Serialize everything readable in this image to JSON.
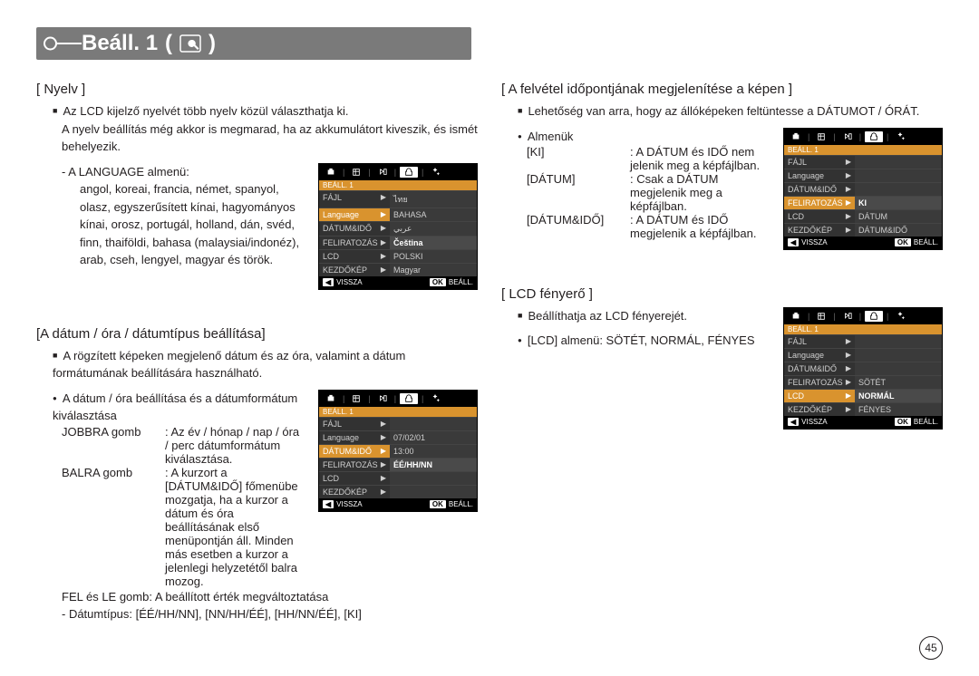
{
  "header": {
    "title": "Beáll. 1"
  },
  "page_number": "45",
  "colors": {
    "header_bar": "#7a7a7a",
    "accent": "#d9932e",
    "mini_bg": "#2b2b2b"
  },
  "left": {
    "nyelv": {
      "title": "[ Nyelv ]",
      "para1": "Az LCD kijelző nyelvét több nyelv közül választhatja ki.",
      "para2": "A nyelv beállítás még akkor is megmarad, ha az akkumulátort kiveszik, és ismét behelyezik.",
      "sub_title": "- A LANGUAGE almenü:",
      "langs": "angol, koreai, francia, német, spanyol, olasz, egyszerűsített kínai, hagyományos kínai, orosz, portugál, holland, dán, svéd, finn, thaiföldi, bahasa (malaysiai/indonéz), arab, cseh, lengyel, magyar és török."
    },
    "datum": {
      "title": "[A dátum / óra / dátumtípus beállítása]",
      "para1": "A rögzített képeken megjelenő dátum és az óra, valamint a dátum formátumának beállítására használható.",
      "sub_title": "A dátum / óra beállítása és a dátumformátum kiválasztása",
      "jobb_key": "JOBBRA gomb",
      "jobb_val": ": Az év / hónap / nap / óra / perc dátumformátum kiválasztása.",
      "bal_key": "BALRA gomb",
      "bal_val": ": A kurzort a [DÁTUM&IDŐ] főmenübe mozgatja, ha a kurzor a dátum és óra beállításának első menüpontján áll. Minden más esetben a kurzor a jelenlegi helyzetétől balra mozog.",
      "felle": "FEL és LE gomb: A beállított érték megváltoztatása",
      "dtype": "- Dátumtípus: [ÉÉ/HH/NN], [NN/HH/ÉÉ], [HH/NN/ÉÉ], [KI]"
    }
  },
  "right": {
    "felvetel": {
      "title": "[ A felvétel időpontjának megjelenítése a képen ]",
      "para1": "Lehetőség van arra, hogy az állóképeken feltüntesse a DÁTUMOT / ÓRÁT.",
      "almenuk": "Almenük",
      "ki_key": "[KI]",
      "ki_val": ": A DÁTUM és IDŐ nem jelenik meg a képfájlban.",
      "datum_key": "[DÁTUM]",
      "datum_val": ": Csak a DÁTUM megjelenik meg a képfájlban.",
      "both_key": "[DÁTUM&IDŐ]",
      "both_val": ": A DÁTUM és IDŐ megjelenik a képfájlban."
    },
    "lcd": {
      "title": "[ LCD fényerő ]",
      "para1": "Beállíthatja az LCD fényerejét.",
      "sub": "[LCD] almenü: SÖTÉT, NORMÁL, FÉNYES"
    }
  },
  "lcds": {
    "common": {
      "banner": "BEÁLL. 1",
      "foot_back_sym": "◀",
      "foot_back": "VISSZA",
      "foot_ok_sym": "OK",
      "foot_ok": "BEÁLL.",
      "arrow": "▶"
    },
    "lang": {
      "rows": [
        {
          "l": "FÁJL",
          "r": "ไทย"
        },
        {
          "l": "Language",
          "r": "BAHASA",
          "lsel": true
        },
        {
          "l": "DÁTUM&IDŐ",
          "r": "عربي"
        },
        {
          "l": "FELIRATOZÁS",
          "r": "Čeština",
          "rsel": true
        },
        {
          "l": "LCD",
          "r": "POLSKI"
        },
        {
          "l": "KEZDŐKÉP",
          "r": "Magyar"
        }
      ]
    },
    "date": {
      "rows": [
        {
          "l": "FÁJL",
          "r": ""
        },
        {
          "l": "Language",
          "r": "07/02/01"
        },
        {
          "l": "DÁTUM&IDŐ",
          "r": "13:00",
          "lsel": true
        },
        {
          "l": "FELIRATOZÁS",
          "r": "ÉÉ/HH/NN",
          "rsel": true
        },
        {
          "l": "LCD",
          "r": ""
        },
        {
          "l": "KEZDŐKÉP",
          "r": ""
        }
      ]
    },
    "imprint": {
      "rows": [
        {
          "l": "FÁJL",
          "r": ""
        },
        {
          "l": "Language",
          "r": ""
        },
        {
          "l": "DÁTUM&IDŐ",
          "r": ""
        },
        {
          "l": "FELIRATOZÁS",
          "r": "KI",
          "lsel": true,
          "rsel": true
        },
        {
          "l": "LCD",
          "r": "DÁTUM"
        },
        {
          "l": "KEZDŐKÉP",
          "r": "DÁTUM&IDŐ"
        }
      ]
    },
    "bright": {
      "rows": [
        {
          "l": "FÁJL",
          "r": ""
        },
        {
          "l": "Language",
          "r": ""
        },
        {
          "l": "DÁTUM&IDŐ",
          "r": ""
        },
        {
          "l": "FELIRATOZÁS",
          "r": "SÖTÉT"
        },
        {
          "l": "LCD",
          "r": "NORMÁL",
          "lsel": true,
          "rsel": true
        },
        {
          "l": "KEZDŐKÉP",
          "r": "FÉNYES"
        }
      ]
    }
  }
}
